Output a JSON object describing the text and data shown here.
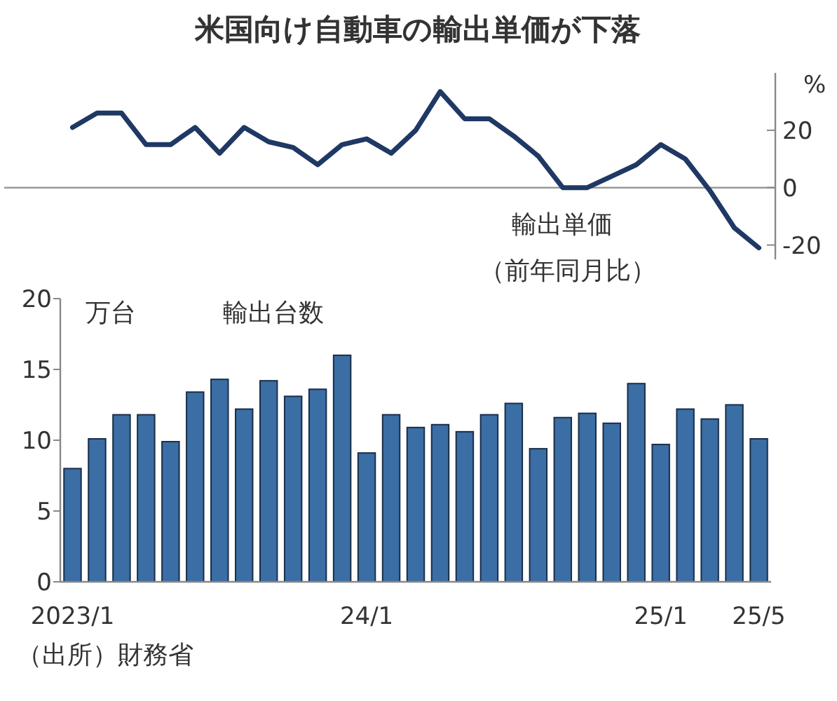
{
  "chart_data": [
    {
      "type": "line",
      "title": "米国向け自動車の輸出単価が下落",
      "ylabel": "%",
      "categories": [
        null,
        null,
        null,
        null,
        null,
        null,
        null,
        null,
        null,
        null,
        null,
        null,
        null,
        null,
        null,
        null,
        null,
        null,
        null,
        null,
        null,
        null,
        null,
        null,
        null,
        null,
        null,
        null,
        null
      ],
      "series": [
        {
          "color": "#1f3864",
          "values": [
            21,
            26,
            26,
            15,
            15,
            21,
            12,
            21,
            16,
            14,
            8,
            15,
            17,
            12,
            20,
            33.5,
            24,
            24,
            18,
            11,
            0,
            0,
            4,
            8,
            15,
            10,
            -1,
            -14,
            -21
          ]
        }
      ],
      "ylim": [
        -25,
        40
      ],
      "yticks": [
        -20,
        0,
        20
      ],
      "tick_labels": "y",
      "ref_lines": [
        {
          "axis": "y",
          "value": 0,
          "color": "#999999"
        }
      ],
      "annotations": [
        "輸出単価",
        "（前年同月比）"
      ]
    },
    {
      "type": "bar",
      "ylabel": "万台",
      "categories": [
        "2023/1",
        null,
        null,
        null,
        null,
        null,
        null,
        null,
        null,
        null,
        null,
        null,
        "24/1",
        null,
        null,
        null,
        null,
        null,
        null,
        null,
        null,
        null,
        null,
        null,
        "25/1",
        null,
        null,
        null,
        "25/5"
      ],
      "series": [
        {
          "color": "#3a6ea5",
          "values": [
            8.0,
            10.1,
            11.8,
            11.8,
            9.9,
            13.4,
            14.3,
            12.2,
            14.2,
            13.1,
            13.6,
            16.0,
            9.1,
            11.8,
            10.9,
            11.1,
            10.6,
            11.8,
            12.6,
            9.4,
            11.6,
            11.9,
            11.2,
            14.0,
            9.7,
            12.2,
            11.5,
            12.5,
            10.1
          ]
        }
      ],
      "ylim": [
        0,
        20
      ],
      "yticks": [
        0,
        5,
        10,
        15,
        20
      ],
      "annotations": [
        "輸出台数",
        "（出所）財務省"
      ]
    }
  ]
}
